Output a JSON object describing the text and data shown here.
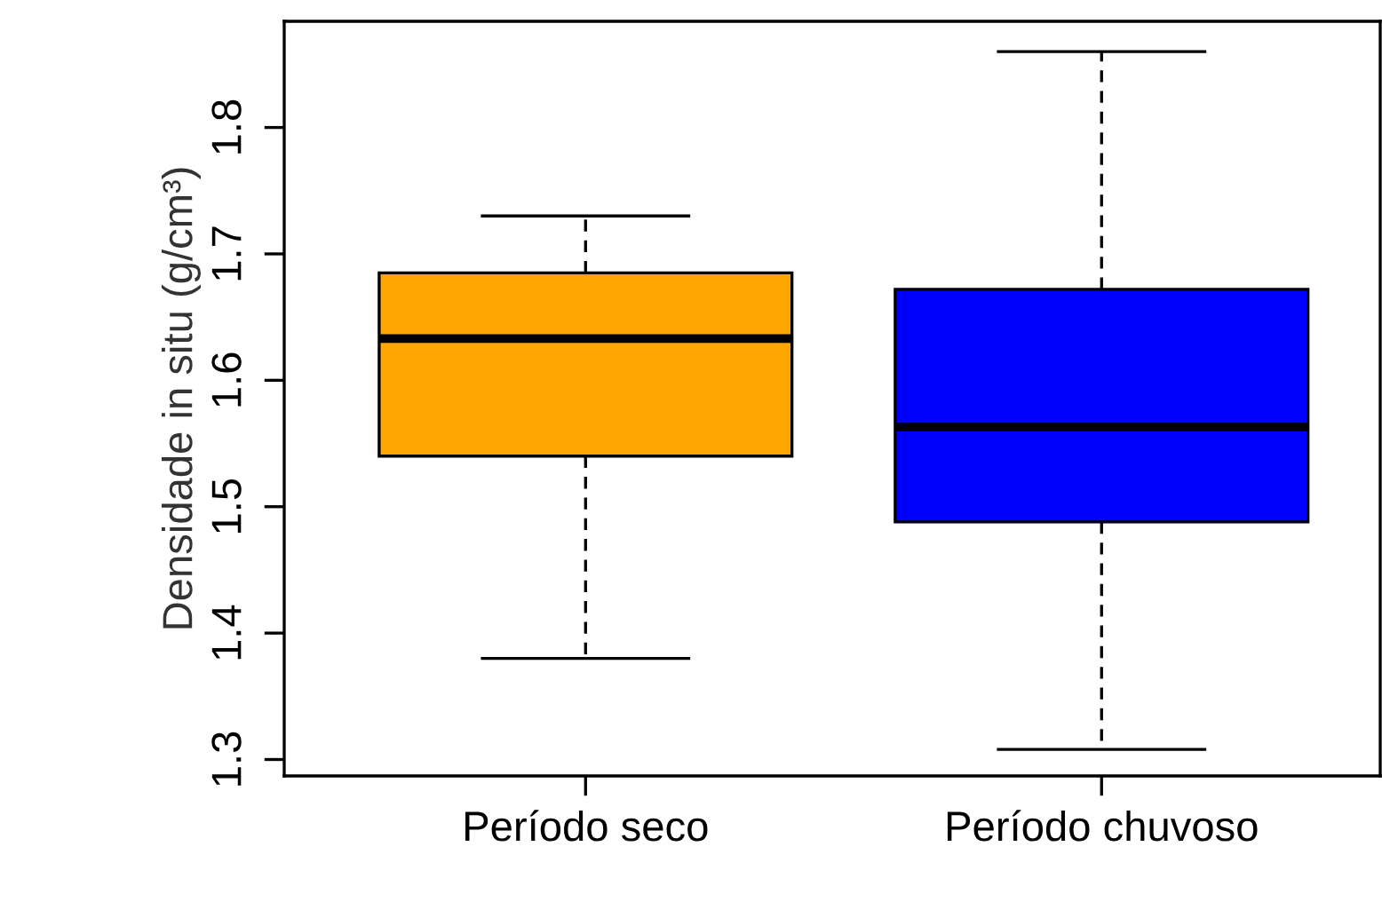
{
  "chart_data": {
    "type": "box",
    "ylabel": "Densidade in situ (g/cm³)",
    "categories": [
      "Período seco",
      "Período chuvoso"
    ],
    "boxes": [
      {
        "low": 1.38,
        "q1": 1.54,
        "median": 1.633,
        "q3": 1.685,
        "high": 1.73
      },
      {
        "low": 1.308,
        "q1": 1.488,
        "median": 1.563,
        "q3": 1.672,
        "high": 1.86
      }
    ],
    "colors": [
      "#ffa500",
      "#0000ff"
    ],
    "ylim": [
      1.287,
      1.884
    ],
    "yticks": [
      1.3,
      1.4,
      1.5,
      1.6,
      1.7,
      1.8
    ],
    "line_style": "dashed",
    "grid": false,
    "legend": false
  }
}
